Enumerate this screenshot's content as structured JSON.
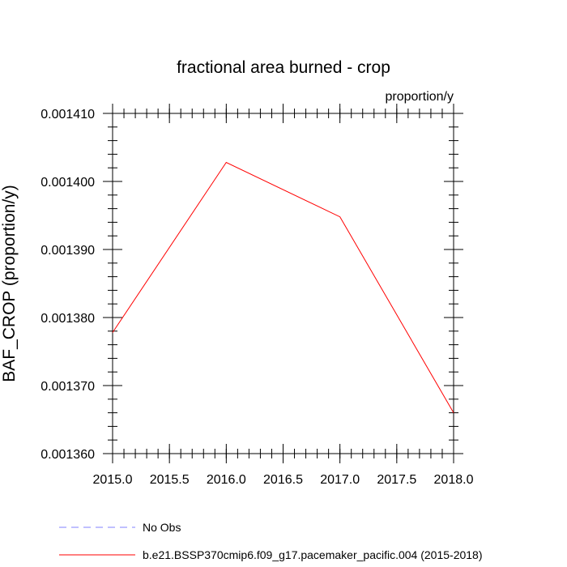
{
  "chart_data": {
    "type": "line",
    "title": "fractional area burned - crop",
    "units": "proportion/y",
    "xlabel": "",
    "ylabel": "BAF_CROP  (proportion/y)",
    "xlim": [
      2015.0,
      2018.0
    ],
    "ylim": [
      0.00136,
      0.00141
    ],
    "xticks": [
      2015.0,
      2015.5,
      2016.0,
      2016.5,
      2017.0,
      2017.5,
      2018.0
    ],
    "xtick_labels": [
      "2015.0",
      "2015.5",
      "2016.0",
      "2016.5",
      "2017.0",
      "2017.5",
      "2018.0"
    ],
    "yticks": [
      0.00136,
      0.00137,
      0.00138,
      0.00139,
      0.0014,
      0.00141
    ],
    "ytick_labels": [
      "0.001360",
      "0.001370",
      "0.001380",
      "0.001390",
      "0.001400",
      "0.001410"
    ],
    "grid": false,
    "legend_placement": "bottom",
    "series": [
      {
        "name": "b.e21.BSSP370cmip6.f09_g17.pacemaker_pacific.004 (2015-2018)",
        "color": "#ff0000",
        "dash": "solid",
        "x": [
          2015.0,
          2016.0,
          2017.0,
          2018.0
        ],
        "y": [
          0.0013778,
          0.0014028,
          0.0013948,
          0.001366
        ]
      }
    ],
    "legend": [
      {
        "label": "No Obs",
        "color": "#8080ff",
        "dash": "dashed"
      },
      {
        "label": "b.e21.BSSP370cmip6.f09_g17.pacemaker_pacific.004 (2015-2018)",
        "color": "#ff0000",
        "dash": "solid"
      }
    ]
  }
}
